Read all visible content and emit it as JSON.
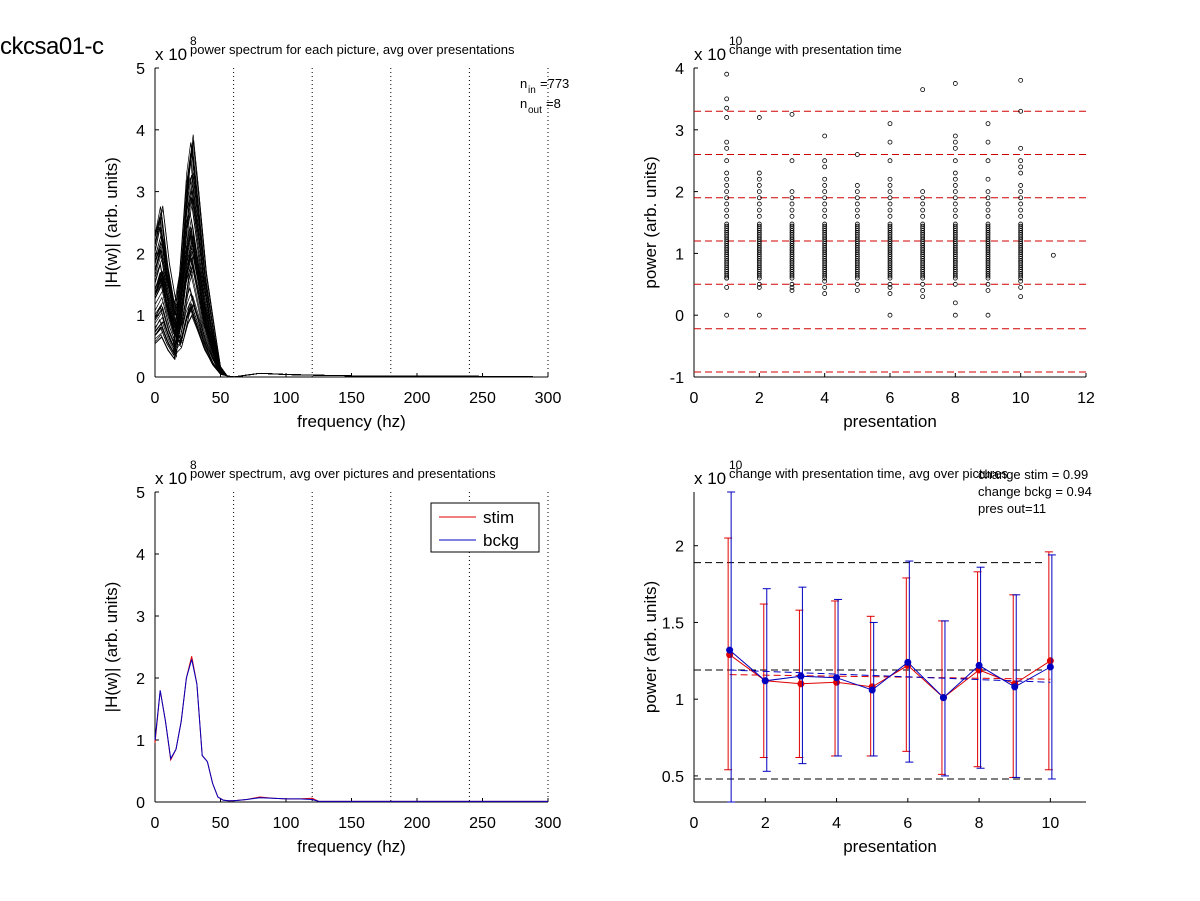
{
  "figure": {
    "title": "ckcsa01-c"
  },
  "chart_data": [
    {
      "type": "line",
      "title": "power spectrum for each picture, avg over presentations",
      "xlabel": "frequency (hz)",
      "ylabel": "|H(w)| (arb. units)",
      "exponent": "x 10",
      "exponent_power": "8",
      "xlim": [
        0,
        300
      ],
      "ylim": [
        0,
        5
      ],
      "xticks": [
        0,
        50,
        100,
        150,
        200,
        250,
        300
      ],
      "yticks": [
        0,
        1,
        2,
        3,
        4,
        5
      ],
      "vlines": [
        60,
        120,
        180,
        240,
        300
      ],
      "annotations": [
        {
          "base": "n",
          "sub": "in",
          "value": "=773"
        },
        {
          "base": "n",
          "sub": "out",
          "value": "=8"
        }
      ],
      "curve_x": [
        0,
        5,
        10,
        15,
        20,
        25,
        28,
        32,
        38,
        45,
        50,
        55,
        60,
        70,
        80,
        90,
        100,
        120,
        150,
        200,
        250,
        300
      ],
      "curve_mean": [
        1.5,
        1.8,
        1.2,
        0.8,
        1.1,
        2.0,
        2.3,
        1.8,
        1.0,
        0.4,
        0.1,
        0.02,
        0.0,
        0.03,
        0.06,
        0.05,
        0.04,
        0.03,
        0.02,
        0.015,
        0.01,
        0.0
      ],
      "trace_count": 60
    },
    {
      "type": "scatter",
      "title": "change with presentation time",
      "xlabel": "presentation",
      "ylabel": "power (arb. units)",
      "exponent": "x 10",
      "exponent_power": "10",
      "xlim": [
        0,
        12
      ],
      "ylim": [
        -1,
        4
      ],
      "xticks": [
        0,
        2,
        4,
        6,
        8,
        10,
        12
      ],
      "yticks": [
        -1,
        0,
        1,
        2,
        3,
        4
      ],
      "hlines": [
        3.3,
        2.6,
        1.9,
        1.2,
        0.5,
        -0.22,
        -0.92
      ],
      "hline_color": "#d00000",
      "points": [
        {
          "x": 1,
          "ys": [
            0.0,
            0.45,
            0.6,
            1.6,
            1.7,
            1.8,
            1.9,
            2.0,
            2.1,
            2.2,
            2.3,
            2.5,
            2.7,
            2.8,
            3.2,
            3.35,
            3.5,
            3.9
          ]
        },
        {
          "x": 2,
          "ys": [
            0.0,
            0.45,
            0.5,
            1.6,
            1.7,
            1.8,
            1.9,
            2.0,
            2.1,
            2.2,
            2.3,
            3.2
          ]
        },
        {
          "x": 3,
          "ys": [
            0.4,
            0.45,
            0.5,
            1.6,
            1.7,
            1.8,
            1.9,
            2.0,
            2.5,
            3.25
          ]
        },
        {
          "x": 4,
          "ys": [
            0.35,
            0.45,
            0.55,
            1.6,
            1.7,
            1.8,
            1.9,
            2.0,
            2.1,
            2.2,
            2.4,
            2.5,
            2.9
          ]
        },
        {
          "x": 5,
          "ys": [
            0.4,
            0.5,
            1.6,
            1.7,
            1.8,
            1.9,
            2.0,
            2.1,
            2.6
          ]
        },
        {
          "x": 6,
          "ys": [
            0.0,
            0.35,
            0.45,
            0.5,
            1.6,
            1.7,
            1.8,
            1.9,
            2.0,
            2.1,
            2.2,
            2.5,
            2.8,
            3.1
          ]
        },
        {
          "x": 7,
          "ys": [
            0.3,
            0.4,
            0.5,
            1.6,
            1.7,
            1.8,
            1.9,
            2.0,
            3.65
          ]
        },
        {
          "x": 8,
          "ys": [
            0.0,
            0.2,
            0.5,
            1.6,
            1.7,
            1.8,
            1.9,
            2.0,
            2.1,
            2.2,
            2.3,
            2.5,
            2.7,
            2.8,
            2.9,
            3.75
          ]
        },
        {
          "x": 9,
          "ys": [
            0.0,
            0.4,
            0.5,
            1.6,
            1.7,
            1.8,
            1.9,
            2.0,
            2.2,
            2.5,
            2.8,
            3.1
          ]
        },
        {
          "x": 10,
          "ys": [
            0.3,
            0.45,
            0.55,
            1.6,
            1.7,
            1.8,
            1.9,
            2.0,
            2.1,
            2.3,
            2.4,
            2.5,
            2.7,
            3.3,
            3.8
          ]
        },
        {
          "x": 11,
          "ys": [
            0.97
          ]
        }
      ],
      "dense_range": [
        0.6,
        1.5
      ]
    },
    {
      "type": "line",
      "title": "power spectrum, avg over pictures and presentations",
      "xlabel": "frequency (hz)",
      "ylabel": "|H(w)| (arb. units)",
      "exponent": "x 10",
      "exponent_power": "8",
      "xlim": [
        0,
        300
      ],
      "ylim": [
        0,
        5
      ],
      "xticks": [
        0,
        50,
        100,
        150,
        200,
        250,
        300
      ],
      "yticks": [
        0,
        1,
        2,
        3,
        4,
        5
      ],
      "vlines": [
        60,
        120,
        180,
        240,
        300
      ],
      "legend": "top-right",
      "x": [
        0,
        4,
        8,
        12,
        16,
        20,
        24,
        28,
        32,
        36,
        40,
        44,
        48,
        52,
        56,
        60,
        70,
        80,
        90,
        100,
        110,
        120,
        125,
        150,
        200,
        250,
        300
      ],
      "series": [
        {
          "name": "stim",
          "color": "#e00000",
          "values": [
            0.95,
            1.8,
            1.3,
            0.68,
            0.85,
            1.3,
            2.0,
            2.35,
            1.9,
            0.75,
            0.65,
            0.3,
            0.08,
            0.03,
            0.02,
            0.02,
            0.04,
            0.08,
            0.06,
            0.05,
            0.05,
            0.06,
            0.01,
            0.01,
            0.01,
            0.01,
            0.01
          ]
        },
        {
          "name": "bckg",
          "color": "#0000c0",
          "values": [
            1.0,
            1.8,
            1.3,
            0.7,
            0.85,
            1.3,
            2.0,
            2.3,
            1.9,
            0.75,
            0.65,
            0.3,
            0.08,
            0.03,
            0.02,
            0.02,
            0.04,
            0.07,
            0.06,
            0.05,
            0.05,
            0.04,
            0.01,
            0.01,
            0.01,
            0.01,
            0.01
          ]
        }
      ]
    },
    {
      "type": "line",
      "title": "change with presentation time, avg over pictures",
      "xlabel": "presentation",
      "ylabel": "power (arb. units)",
      "exponent": "x 10",
      "exponent_power": "10",
      "xlim": [
        0,
        11
      ],
      "ylim": [
        0.33,
        2.35
      ],
      "xticks": [
        0,
        2,
        4,
        6,
        8,
        10
      ],
      "yticks": [
        0.5,
        1,
        1.5,
        2
      ],
      "annotations": [
        "change stim = 0.99",
        "change bckg = 0.94",
        "pres out=11"
      ],
      "hlines": [
        1.89,
        1.19,
        0.48
      ],
      "x": [
        1,
        2,
        3,
        4,
        5,
        6,
        7,
        8,
        9,
        10
      ],
      "series": [
        {
          "name": "stim",
          "color": "#e00000",
          "values": [
            1.29,
            1.12,
            1.1,
            1.11,
            1.08,
            1.22,
            1.01,
            1.19,
            1.1,
            1.25
          ],
          "err_low": [
            0.54,
            0.62,
            0.62,
            0.63,
            0.63,
            0.66,
            0.51,
            0.56,
            0.49,
            0.54
          ],
          "err_high": [
            2.05,
            1.62,
            1.58,
            1.64,
            1.54,
            1.79,
            1.51,
            1.83,
            1.68,
            1.96
          ],
          "trend": [
            1.16,
            1.13
          ]
        },
        {
          "name": "bckg",
          "color": "#0000c0",
          "values": [
            1.32,
            1.12,
            1.15,
            1.14,
            1.06,
            1.24,
            1.01,
            1.22,
            1.08,
            1.21
          ],
          "err_low": [
            0.33,
            0.53,
            0.58,
            0.63,
            0.63,
            0.59,
            0.5,
            0.55,
            0.49,
            0.48
          ],
          "err_high": [
            2.35,
            1.72,
            1.73,
            1.65,
            1.5,
            1.9,
            1.51,
            1.86,
            1.68,
            1.94
          ],
          "trend": [
            1.19,
            1.11
          ]
        }
      ]
    }
  ]
}
